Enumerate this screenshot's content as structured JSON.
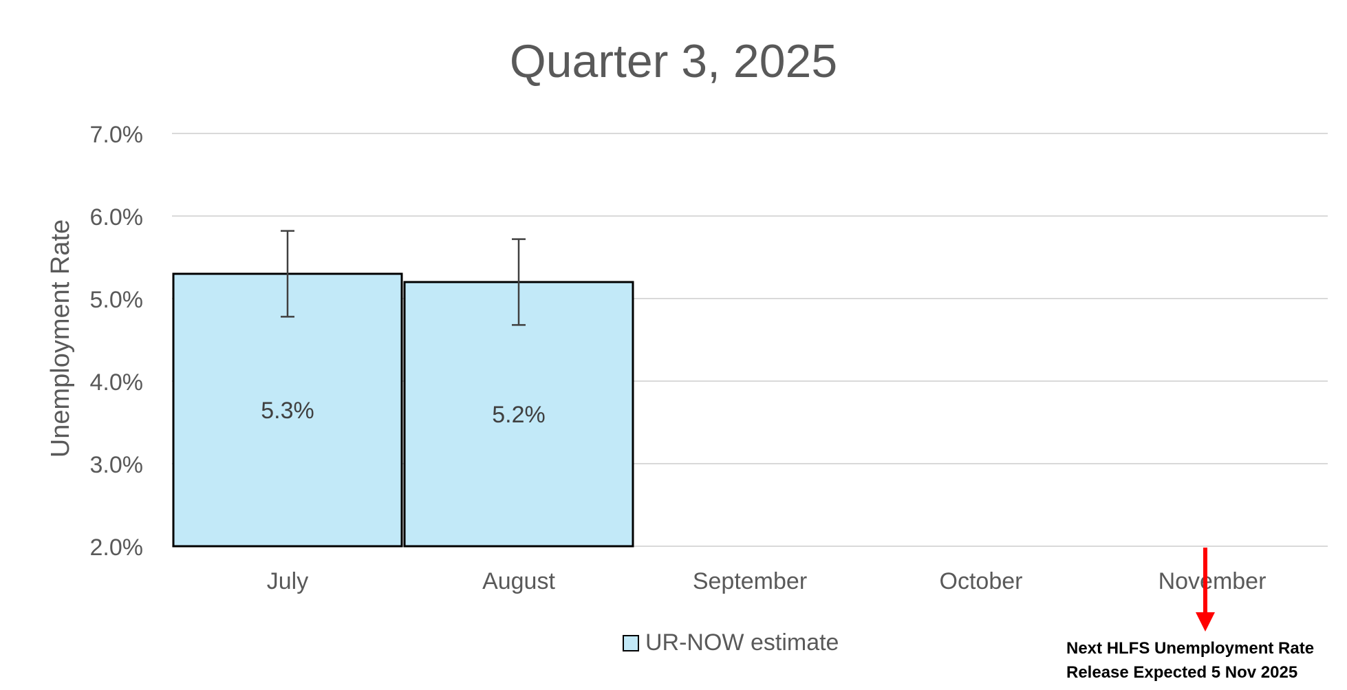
{
  "chart_data": {
    "type": "bar",
    "title": "Quarter 3, 2025",
    "ylabel": "Unemployment Rate",
    "xlabel": "",
    "categories": [
      "July",
      "August",
      "September",
      "October",
      "November"
    ],
    "series": [
      {
        "name": "UR-NOW estimate",
        "values": [
          5.3,
          5.2,
          null,
          null,
          null
        ],
        "error_low": [
          4.78,
          4.68,
          null,
          null,
          null
        ],
        "error_high": [
          5.82,
          5.72,
          null,
          null,
          null
        ],
        "data_labels": [
          "5.3%",
          "5.2%",
          "",
          "",
          ""
        ]
      }
    ],
    "ylim": [
      2.0,
      7.0
    ],
    "yticks": [
      2.0,
      3.0,
      4.0,
      5.0,
      6.0,
      7.0
    ],
    "ytick_labels": [
      "2.0%",
      "3.0%",
      "4.0%",
      "5.0%",
      "6.0%",
      "7.0%"
    ],
    "grid": true,
    "legend_position": "bottom-center",
    "annotation": {
      "category": "November",
      "lines": [
        "Next HLFS Unemployment Rate",
        "Release Expected 5 Nov 2025"
      ],
      "color": "#ff0000"
    },
    "colors": {
      "bar_fill": "#c2e9f8",
      "bar_stroke": "#000000",
      "grid": "#d9d9d9",
      "text": "#595959",
      "error_bar": "#404040"
    }
  }
}
